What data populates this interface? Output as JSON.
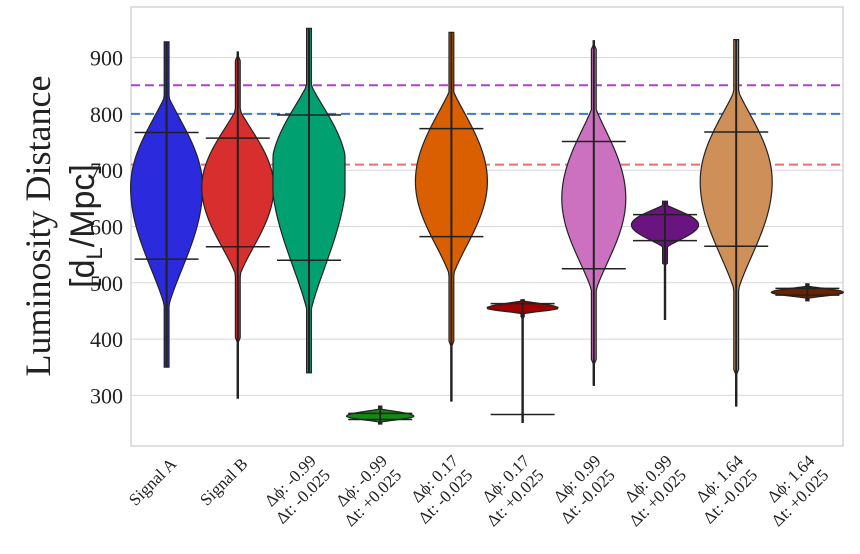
{
  "chart_data": {
    "type": "violin",
    "ylabel_line1": "Luminosity Distance",
    "ylabel_line2": "[d",
    "ylabel_sub": "L",
    "ylabel_line2_end": "/Mpc]",
    "ylim": [
      210,
      990
    ],
    "yticks": [
      300,
      400,
      500,
      600,
      700,
      800,
      900
    ],
    "grid": true,
    "reference_lines": [
      {
        "y": 851,
        "color": "#b040c8"
      },
      {
        "y": 800,
        "color": "#3c78d8"
      },
      {
        "y": 710,
        "color": "#e67070"
      }
    ],
    "categories": [
      {
        "line1": "Signal A",
        "line2": "",
        "color": "#2b2bdd",
        "min": 350,
        "max": 928,
        "q_low": 542,
        "q_high": 767,
        "med": 670,
        "w_mode": 0.45,
        "w_upper_pos": 0.5,
        "bot": 440,
        "top": 840,
        "thin_tail": 0.03
      },
      {
        "line1": "Signal B",
        "line2": "",
        "color": "#d92e2e",
        "min": 295,
        "max": 910,
        "q_low": 564,
        "q_high": 757,
        "med": 670,
        "w_mode": 0.45,
        "w_upper_pos": 0.5,
        "bot": 500,
        "top": 815,
        "thin_tail": 0.03
      },
      {
        "line1": "Δϕ: -0.99",
        "line2": "Δt: -0.025",
        "color": "#00a070",
        "min": 340,
        "max": 952,
        "q_low": 540,
        "q_high": 798,
        "med": 700,
        "w_mode": 0.47,
        "w_upper_pos": 0.55,
        "bot": 430,
        "top": 860,
        "thin_tail": 0.03
      },
      {
        "line1": "Δϕ: -0.99",
        "line2": "Δt: +0.025",
        "color": "#148a14",
        "min": 249,
        "max": 281,
        "q_low": 257,
        "q_high": 268,
        "med": 263,
        "w_mode": 0.42,
        "w_upper_pos": 0.5,
        "bot": 252,
        "top": 276,
        "thin_tail": 0.02
      },
      {
        "line1": "Δϕ: 0.17",
        "line2": "Δt: -0.025",
        "color": "#d95f00",
        "min": 290,
        "max": 945,
        "q_low": 582,
        "q_high": 774,
        "med": 680,
        "w_mode": 0.45,
        "w_upper_pos": 0.55,
        "bot": 500,
        "top": 850,
        "thin_tail": 0.03
      },
      {
        "line1": "Δϕ: 0.17",
        "line2": "Δt: +0.025",
        "color": "#a00000",
        "min": 252,
        "max": 470,
        "q_low": 266,
        "q_high": 463,
        "med": 455,
        "w_mode": 0.45,
        "w_upper_pos": 0.5,
        "bot": 445,
        "top": 468,
        "thin_tail": 0.02
      },
      {
        "line1": "Δϕ: 0.99",
        "line2": "Δt: -0.025",
        "color": "#cc70c0",
        "min": 318,
        "max": 930,
        "q_low": 525,
        "q_high": 751,
        "med": 650,
        "w_mode": 0.4,
        "w_upper_pos": 0.5,
        "bot": 470,
        "top": 820,
        "thin_tail": 0.03
      },
      {
        "line1": "Δϕ: 0.99",
        "line2": "Δt: +0.025",
        "color": "#6a1480",
        "min": 435,
        "max": 645,
        "q_low": 575,
        "q_high": 621,
        "med": 603,
        "w_mode": 0.42,
        "w_upper_pos": 0.5,
        "bot": 560,
        "top": 640,
        "thin_tail": 0.03
      },
      {
        "line1": "Δϕ: 1.64",
        "line2": "Δt: -0.025",
        "color": "#cf8f58",
        "min": 281,
        "max": 932,
        "q_low": 565,
        "q_high": 768,
        "med": 680,
        "w_mode": 0.45,
        "w_upper_pos": 0.55,
        "bot": 470,
        "top": 850,
        "thin_tail": 0.03
      },
      {
        "line1": "Δϕ: 1.64",
        "line2": "Δt: +0.025",
        "color": "#6a2200",
        "min": 468,
        "max": 498,
        "q_low": 478,
        "q_high": 490,
        "med": 483,
        "w_mode": 0.45,
        "w_upper_pos": 0.5,
        "bot": 472,
        "top": 494,
        "thin_tail": 0.02
      }
    ]
  }
}
